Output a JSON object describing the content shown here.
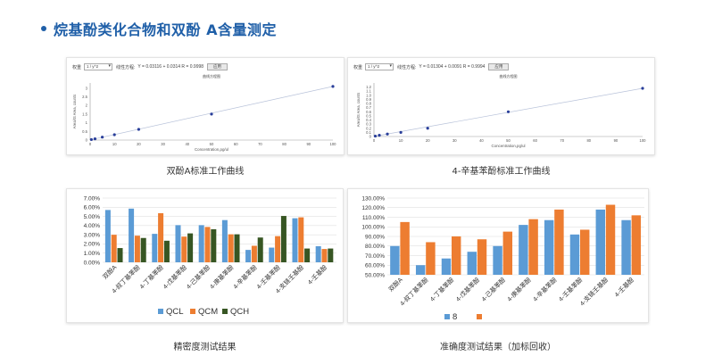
{
  "title": "烷基酚类化合物和双酚 A含量测定",
  "calibration_toolbar": {
    "weight_label": "权重",
    "weight_value": "1 / y^2",
    "fit_label": "线性方程:",
    "apply_label": "应用"
  },
  "calib_bpa": {
    "caption": "双酚A标准工作曲线",
    "equation": "Y = 0.03116 + 0.0314   R = 0.9998",
    "chart_title": "曲线方程图",
    "xlabel": "Concentration,pg/ul",
    "ylabel": "Area/IS Area, counts"
  },
  "calib_op": {
    "caption": "4-辛基苯酚标准工作曲线",
    "equation": "Y = 0.01304 + 0.0091   R = 0.9994",
    "chart_title": "曲线方程图",
    "xlabel": "Concentration,pg/ul",
    "ylabel": "Area/IS Area, counts"
  },
  "precision": {
    "caption": "精密度测试结果"
  },
  "accuracy": {
    "caption": "准确度测试结果（加标回收）"
  },
  "chart_data": [
    {
      "type": "scatter",
      "x": [
        0.5,
        2,
        5,
        10,
        20,
        50,
        100
      ],
      "y": [
        0.03,
        0.07,
        0.17,
        0.31,
        0.62,
        1.5,
        3.1
      ],
      "xticks": [
        0,
        10,
        20,
        30,
        40,
        50,
        60,
        70,
        80,
        90,
        100
      ],
      "yticks": [
        "0",
        "0.5",
        "1",
        "1.5",
        "2",
        "2.5",
        "3"
      ],
      "xlim": [
        0,
        100
      ],
      "ylim": [
        0,
        3.3
      ],
      "grid": false
    },
    {
      "type": "scatter",
      "x": [
        0.5,
        2,
        5,
        10,
        20,
        50,
        100
      ],
      "y": [
        0.01,
        0.03,
        0.06,
        0.1,
        0.2,
        0.6,
        1.17
      ],
      "xticks": [
        0,
        10,
        20,
        30,
        40,
        50,
        60,
        70,
        80,
        90,
        100
      ],
      "yticks": [
        "0",
        "0.1",
        "0.2",
        "0.3",
        "0.4",
        "0.5",
        "0.6",
        "0.7",
        "0.8",
        "0.9",
        "1.0",
        "1.1",
        "1.2"
      ],
      "xlim": [
        0,
        100
      ],
      "ylim": [
        0,
        1.3
      ],
      "grid": false
    },
    {
      "type": "bar",
      "categories": [
        "双酚A",
        "4-叔丁基苯酚",
        "4-丁基苯酚",
        "4-戊基苯酚",
        "4-己基苯酚",
        "4-庚基苯酚",
        "4-辛基苯酚",
        "4-壬基苯酚",
        "4-支链壬基酚",
        "4-壬基酚"
      ],
      "series": [
        {
          "name": "QCL",
          "color": "#5b9bd5",
          "values": [
            5.7,
            5.85,
            3.1,
            4.05,
            4.05,
            4.6,
            1.35,
            1.6,
            4.8,
            1.75
          ]
        },
        {
          "name": "QCM",
          "color": "#ed7d31",
          "values": [
            3.0,
            2.9,
            5.35,
            2.8,
            3.85,
            3.05,
            1.8,
            2.85,
            4.9,
            1.45
          ]
        },
        {
          "name": "QCH",
          "color": "#375623",
          "values": [
            1.55,
            2.65,
            2.35,
            3.15,
            3.6,
            3.05,
            2.7,
            5.05,
            1.5,
            1.5
          ]
        }
      ],
      "yticks": [
        "0.00%",
        "1.00%",
        "2.00%",
        "3.00%",
        "4.00%",
        "5.00%",
        "6.00%",
        "7.00%"
      ],
      "ylim": [
        0,
        7
      ],
      "legend": "bottom"
    },
    {
      "type": "bar",
      "categories": [
        "双酚A",
        "4-叔丁基苯酚",
        "4-丁基苯酚",
        "4-戊基苯酚",
        "4-己基苯酚",
        "4-庚基苯酚",
        "4-辛基苯酚",
        "4-壬基苯酚",
        "4-支链壬基酚",
        "4-壬基酚"
      ],
      "series": [
        {
          "name": "8",
          "color": "#5b9bd5",
          "values": [
            80,
            60,
            67,
            74,
            80,
            102,
            107,
            92,
            118,
            107
          ]
        },
        {
          "name": "",
          "color": "#ed7d31",
          "values": [
            105,
            84,
            90,
            87,
            95,
            108,
            118,
            97,
            123,
            112
          ]
        }
      ],
      "yticks": [
        "50.00%",
        "60.00%",
        "70.00%",
        "80.00%",
        "90.00%",
        "100.00%",
        "110.00%",
        "120.00%",
        "130.00%"
      ],
      "ylim": [
        50,
        130
      ],
      "legend": "bottom"
    }
  ]
}
